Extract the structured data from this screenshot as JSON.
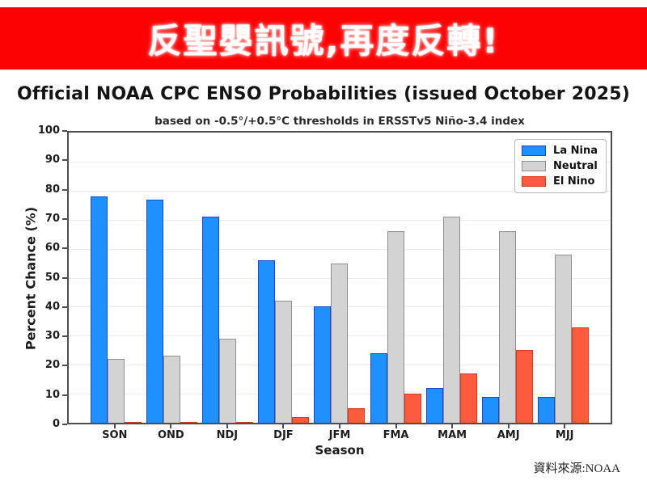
{
  "banner": {
    "text": "反聖嬰訊號,再度反轉!",
    "bg_color": "#fd0202",
    "text_color": "#ffffff"
  },
  "attribution": {
    "text": "資料來源:NOAA"
  },
  "chart_data": {
    "type": "bar",
    "title": "Official NOAA CPC ENSO Probabilities (issued October 2025)",
    "subtitle": "based on -0.5°/+0.5°C thresholds in ERSSTv5 Niño-3.4 index",
    "xlabel": "Season",
    "ylabel": "Percent Chance (%)",
    "ylim": [
      0,
      100
    ],
    "yticks": [
      0,
      10,
      20,
      30,
      40,
      50,
      60,
      70,
      80,
      90,
      100
    ],
    "grid": true,
    "legend_position": "upper right",
    "categories": [
      "SON",
      "OND",
      "NDJ",
      "DJF",
      "JFM",
      "FMA",
      "MAM",
      "AMJ",
      "MJJ"
    ],
    "series": [
      {
        "name": "La Nina",
        "color": "#1e90ff",
        "edge_color": "#2144cc",
        "values": [
          78,
          77,
          71,
          56,
          40,
          24,
          12,
          9,
          9
        ]
      },
      {
        "name": "Neutral",
        "color": "#d3d3d3",
        "edge_color": "#8f8f8f",
        "values": [
          22,
          23,
          29,
          42,
          55,
          66,
          71,
          66,
          58
        ]
      },
      {
        "name": "El Nino",
        "color": "#fd5c3c",
        "edge_color": "#d93a22",
        "values": [
          0,
          0,
          0,
          2,
          5,
          10,
          17,
          25,
          33
        ]
      }
    ]
  }
}
